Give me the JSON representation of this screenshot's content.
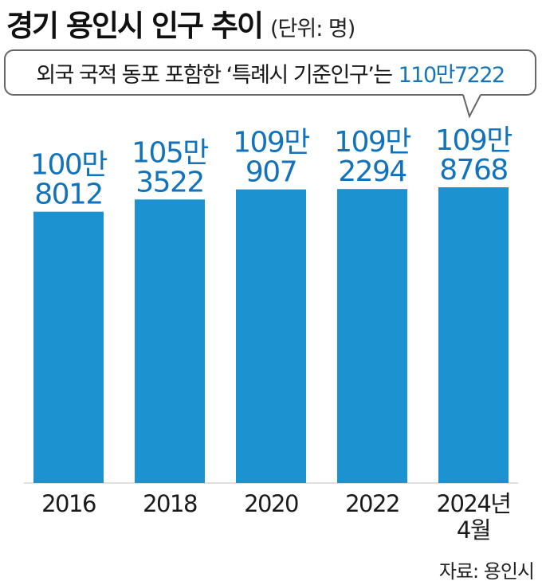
{
  "header": {
    "title": "경기 용인시 인구 추이",
    "unit": "(단위: 명)"
  },
  "callout": {
    "text": "외국 국적 동포 포함한 ‘특례시 기준인구’는",
    "highlight": "110만7222",
    "value": 1107222
  },
  "source": "자료: 용인시",
  "colors": {
    "bar": "#1c93d0",
    "value_label": "#1273ba",
    "text": "#1a1a1a"
  },
  "chart_data": {
    "type": "bar",
    "title": "경기 용인시 인구 추이",
    "unit": "명",
    "categories": [
      "2016",
      "2018",
      "2020",
      "2022",
      "2024년 4월"
    ],
    "category_label_lines": [
      [
        "2016"
      ],
      [
        "2018"
      ],
      [
        "2020"
      ],
      [
        "2022"
      ],
      [
        "2024년",
        "4월"
      ]
    ],
    "values": [
      1008012,
      1053522,
      1090907,
      1092294,
      1098768
    ],
    "value_label_lines": [
      [
        "100만",
        "8012"
      ],
      [
        "105만",
        "3522"
      ],
      [
        "109만",
        "907"
      ],
      [
        "109만",
        "2294"
      ],
      [
        "109만",
        "8768"
      ]
    ],
    "ylim": [
      0,
      1107222
    ],
    "grid": false,
    "legend": "none",
    "xlabel": "",
    "ylabel": ""
  }
}
